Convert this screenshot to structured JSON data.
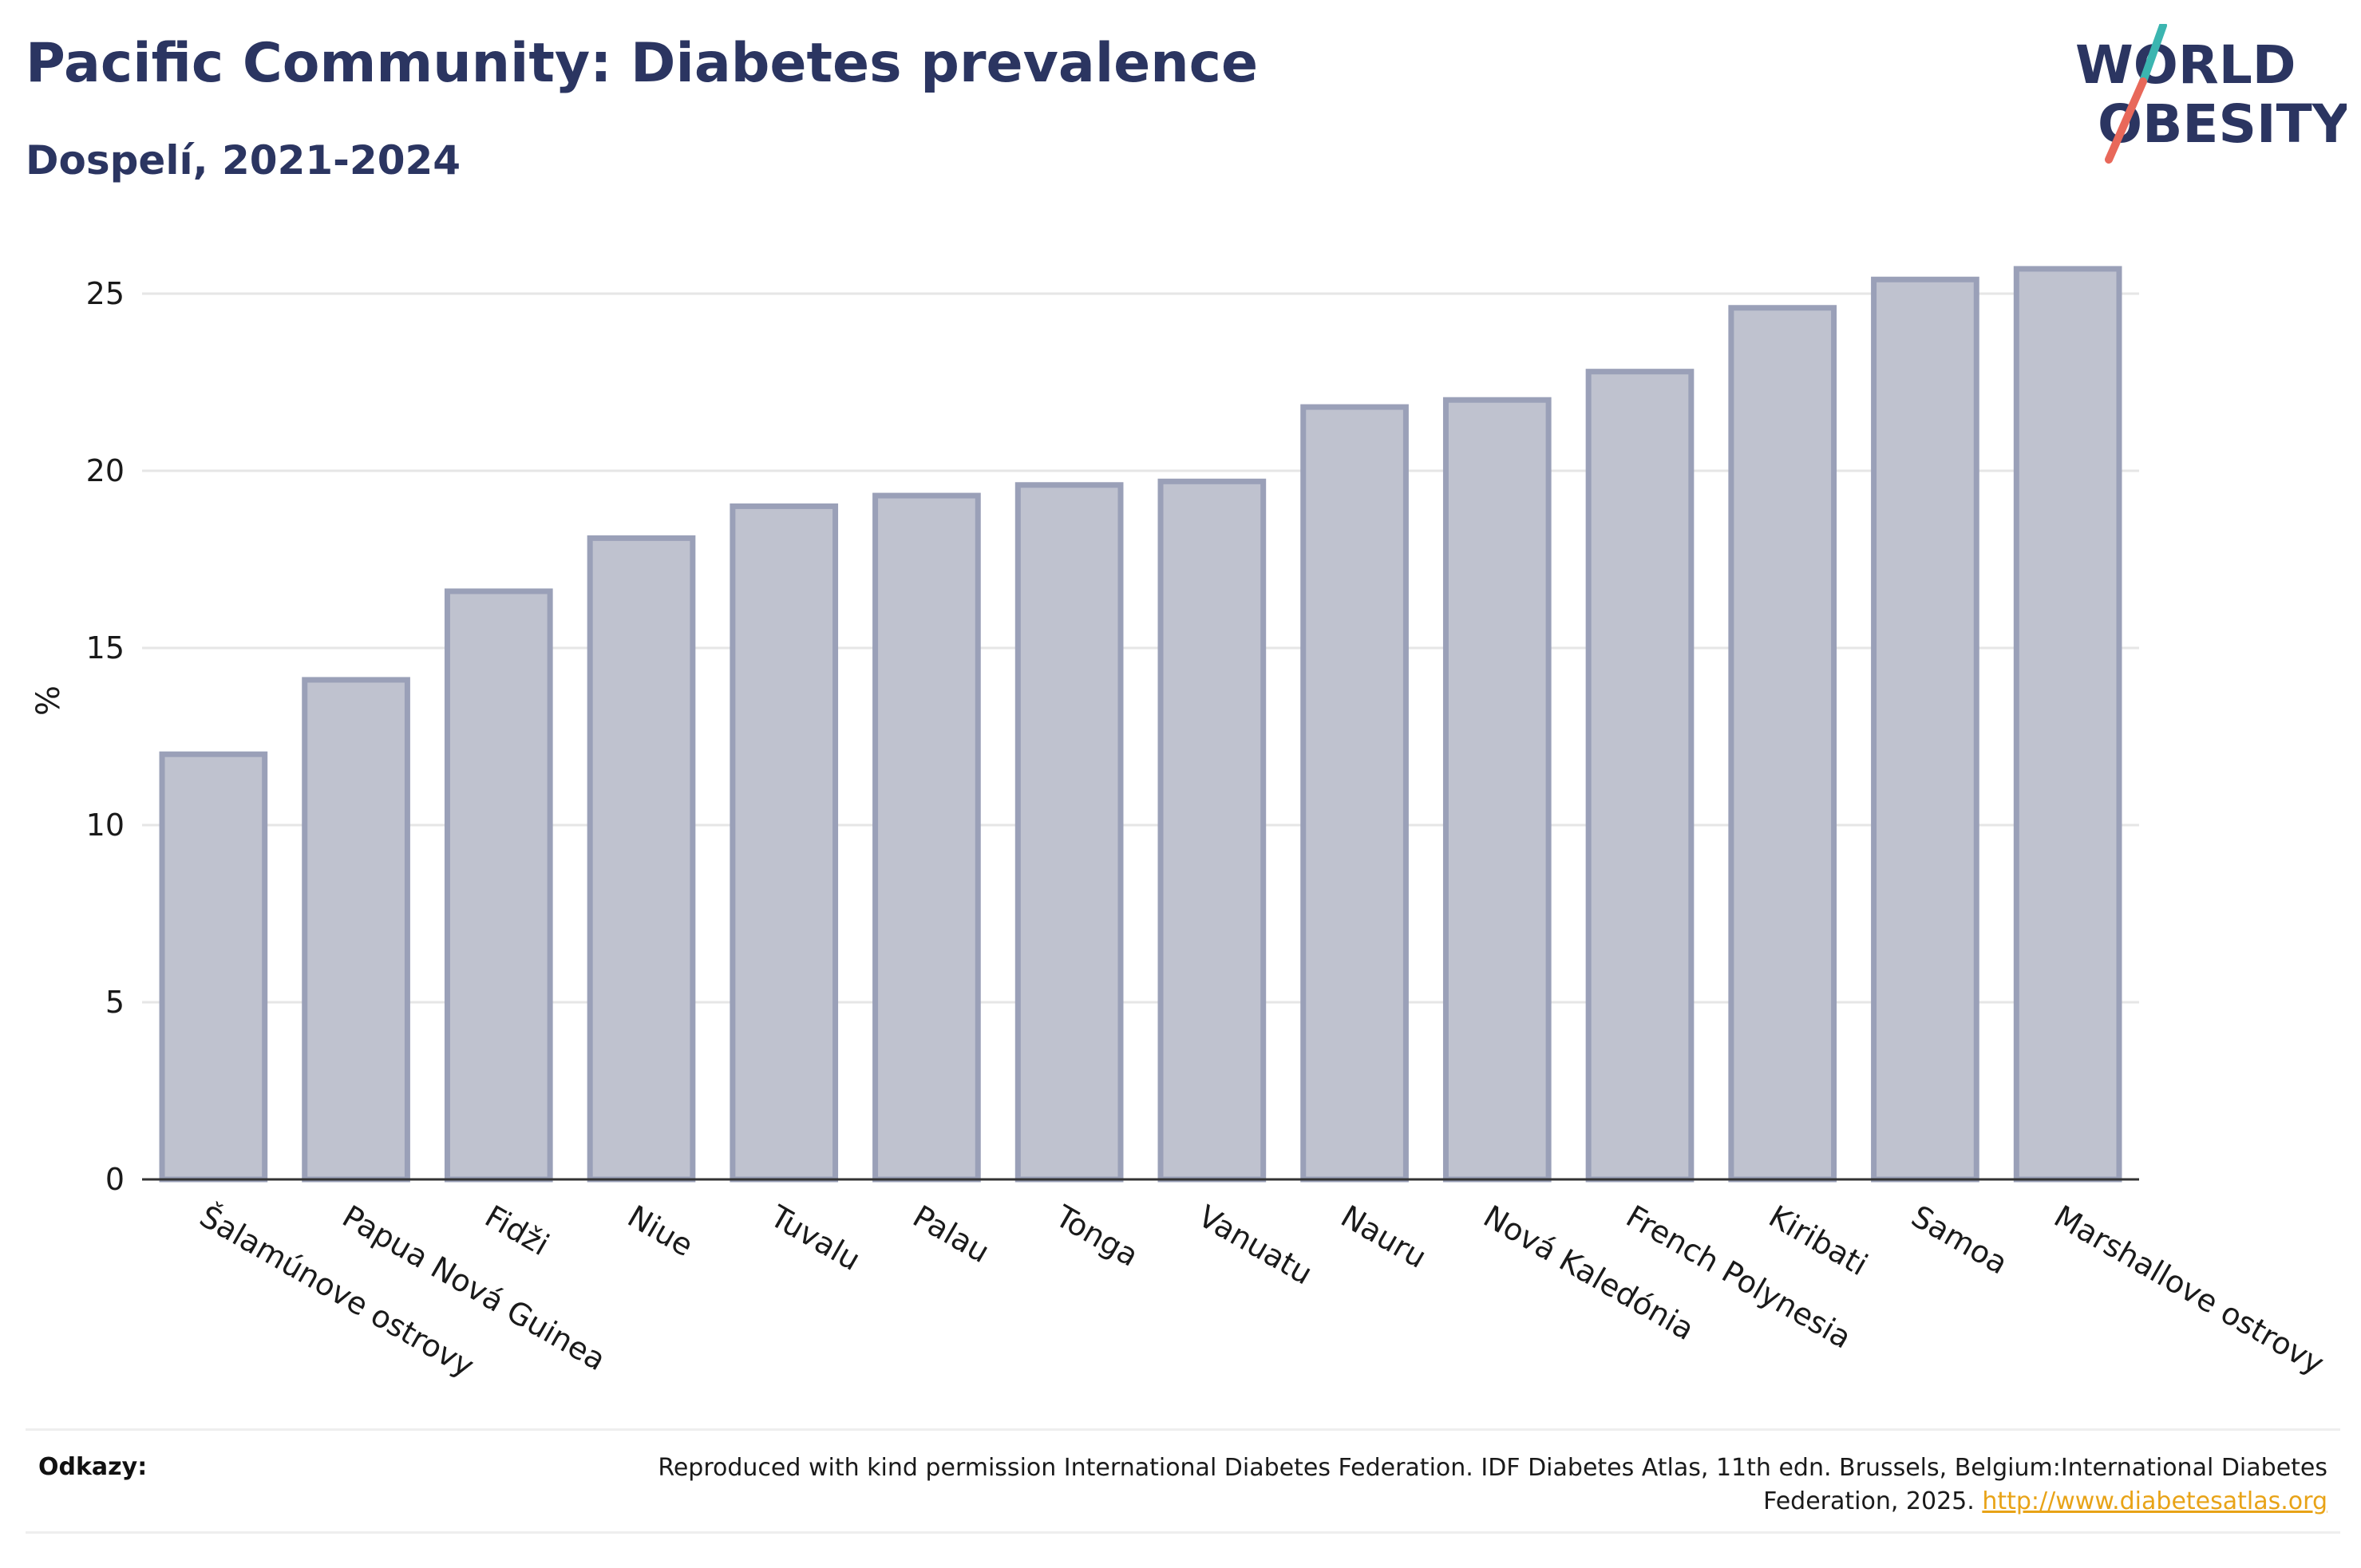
{
  "header": {
    "title": "Pacific Community: Diabetes prevalence",
    "subtitle": "Dospelí, 2021-2024"
  },
  "logo": {
    "line1": "WORLD",
    "line2": "OBESITY",
    "text_color": "#2b3561",
    "slash_color_top": "#3bb5b0",
    "slash_color_bottom": "#e8685a"
  },
  "chart_data": {
    "type": "bar",
    "title": "Pacific Community: Diabetes prevalence",
    "subtitle": "Dospelí, 2021-2024",
    "xlabel": "",
    "ylabel": "%",
    "ylim": [
      0,
      26
    ],
    "yticks": [
      0,
      5,
      10,
      15,
      20,
      25
    ],
    "grid": true,
    "bar_color": "#bfc2cf",
    "bar_edge_color": "#9aa0b8",
    "categories": [
      "Šalamúnove ostrovy",
      "Papua Nová Guinea",
      "Fidži",
      "Niue",
      "Tuvalu",
      "Palau",
      "Tonga",
      "Vanuatu",
      "Nauru",
      "Nová Kaledónia",
      "French Polynesia",
      "Kiribati",
      "Samoa",
      "Marshallove ostrovy"
    ],
    "values": [
      12.0,
      14.1,
      16.6,
      18.1,
      19.0,
      19.3,
      19.6,
      19.7,
      21.8,
      22.0,
      22.8,
      24.6,
      25.4,
      25.7
    ]
  },
  "references": {
    "label": "Odkazy:",
    "text": "Reproduced with kind permission International Diabetes Federation. IDF Diabetes Atlas, 11th edn. Brussels, Belgium:International Diabetes Federation, 2025. ",
    "link": "http://www.diabetesatlas.org",
    "link_color": "#e8a317"
  }
}
